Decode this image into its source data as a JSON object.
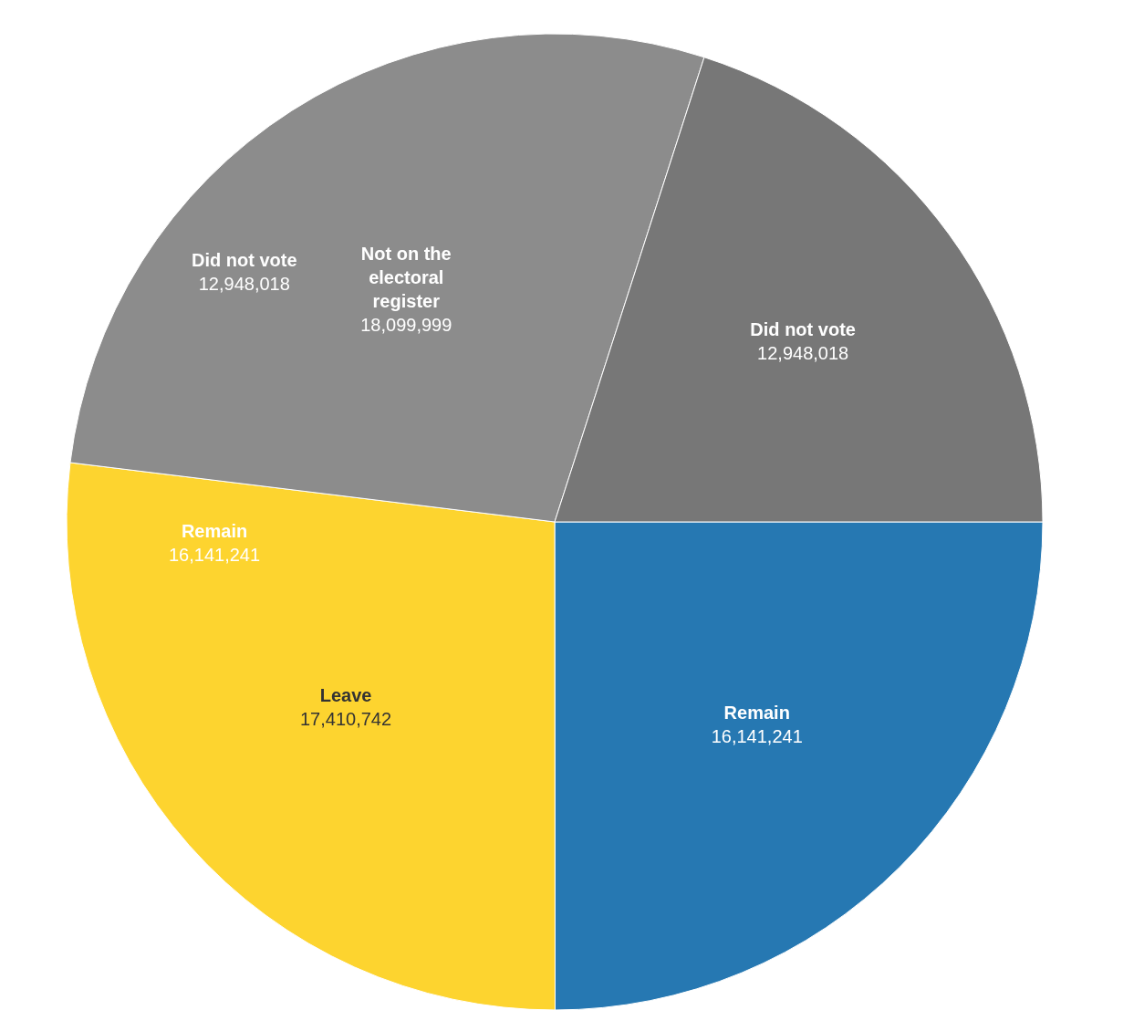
{
  "chart_data": {
    "type": "pie",
    "categories": [
      "Remain",
      "Leave",
      "Not on the electoral register",
      "Did not vote"
    ],
    "values": [
      16141241,
      17410742,
      18099999,
      12948018
    ],
    "colors": [
      "#2678b2",
      "#fdd42f",
      "#8c8c8c",
      "#777777"
    ],
    "value_labels": [
      "16,141,241",
      "17,410,742",
      "18,099,999",
      "12,948,018"
    ],
    "annotations": [
      "Did not vote\n12,948,018",
      "Remain\n16,141,241"
    ],
    "legend": false
  }
}
